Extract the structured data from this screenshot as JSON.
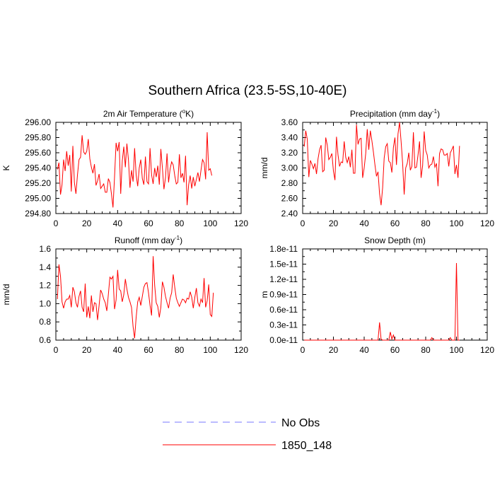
{
  "title": "Southern Africa (23.5-5S,10-40E)",
  "legend": [
    {
      "label": "No Obs",
      "color": "#7777ff",
      "style": "dashed"
    },
    {
      "label": "1850_148",
      "color": "#ff0000",
      "style": "solid"
    }
  ],
  "chart_data": [
    {
      "type": "line",
      "title": "2m Air Temperature (°K)",
      "title_main": "2m Air Temperature (",
      "title_sup": "o",
      "title_end": "K)",
      "ylabel": "K",
      "xlim": [
        0,
        120
      ],
      "ylim": [
        294.8,
        296.0
      ],
      "xticks": [
        0,
        20,
        40,
        60,
        80,
        100,
        120
      ],
      "yticks": [
        "294.80",
        "295.00",
        "295.20",
        "295.40",
        "295.60",
        "295.80",
        "296.00"
      ],
      "color": "#ff0000",
      "series": [
        {
          "name": "1850_148",
          "x_start": 1,
          "x_step": 1,
          "values": [
            295.38,
            295.47,
            295.05,
            295.18,
            295.51,
            295.36,
            295.62,
            295.43,
            295.57,
            295.09,
            295.69,
            295.21,
            295.06,
            295.31,
            295.51,
            295.54,
            295.83,
            295.61,
            295.58,
            295.62,
            295.78,
            295.52,
            295.41,
            295.33,
            295.45,
            295.17,
            295.23,
            295.32,
            295.13,
            295.16,
            295.19,
            295.08,
            295.08,
            295.26,
            295.21,
            295.06,
            294.88,
            295.28,
            295.73,
            295.62,
            295.74,
            295.06,
            295.49,
            295.68,
            295.41,
            295.72,
            295.51,
            295.14,
            295.37,
            295.22,
            295.66,
            295.31,
            295.16,
            295.4,
            295.51,
            295.26,
            295.18,
            295.55,
            295.22,
            295.19,
            295.66,
            295.31,
            295.19,
            295.4,
            295.28,
            295.43,
            295.18,
            295.65,
            295.4,
            295.12,
            295.27,
            295.59,
            295.21,
            295.39,
            295.48,
            295.44,
            295.3,
            295.19,
            295.21,
            295.58,
            295.27,
            295.33,
            295.21,
            295.56,
            294.91,
            295.18,
            295.3,
            295.13,
            295.28,
            295.16,
            295.25,
            295.34,
            295.22,
            295.37,
            295.51,
            295.47,
            295.25,
            295.87,
            295.37,
            295.39,
            295.3
          ]
        }
      ]
    },
    {
      "type": "line",
      "title": "Precipitation (mm day-1)",
      "title_main": "Precipitation (mm day",
      "title_sup": "-1",
      "title_end": ")",
      "ylabel": "mm/d",
      "xlim": [
        0,
        120
      ],
      "ylim": [
        2.4,
        3.6
      ],
      "xticks": [
        0,
        20,
        40,
        60,
        80,
        100,
        120
      ],
      "yticks": [
        "2.40",
        "2.60",
        "2.80",
        "3.00",
        "3.20",
        "3.40",
        "3.60"
      ],
      "color": "#ff0000",
      "series": [
        {
          "name": "1850_148",
          "x_start": 1,
          "x_step": 1,
          "values": [
            3.28,
            3.49,
            3.38,
            2.88,
            3.1,
            3.05,
            2.99,
            3.06,
            2.92,
            3.12,
            3.24,
            3.3,
            2.95,
            2.97,
            3.4,
            3.3,
            3.11,
            3.14,
            3.19,
            2.96,
            2.84,
            3.41,
            3.17,
            3.02,
            3.08,
            3.07,
            3.35,
            3.14,
            3.07,
            3.15,
            3.01,
            3.24,
            2.93,
            2.93,
            3.57,
            3.31,
            3.38,
            3.39,
            2.87,
            3.0,
            3.19,
            3.51,
            3.24,
            3.49,
            3.36,
            3.21,
            3.04,
            2.89,
            2.95,
            2.66,
            2.51,
            2.74,
            3.13,
            3.28,
            3.32,
            3.09,
            3.07,
            2.94,
            3.27,
            3.4,
            3.04,
            3.45,
            3.6,
            3.35,
            3.06,
            2.65,
            3.0,
            3.06,
            3.2,
            2.97,
            3.02,
            3.47,
            3.0,
            3.01,
            3.17,
            3.35,
            2.87,
            3.03,
            3.48,
            3.23,
            3.17,
            3.0,
            3.04,
            3.05,
            3.15,
            3.01,
            3.06,
            2.76,
            3.19,
            3.25,
            3.24,
            3.17,
            3.17,
            3.19,
            3.02,
            3.2,
            3.24,
            3.29,
            2.92,
            3.04,
            2.87,
            3.29
          ]
        }
      ]
    },
    {
      "type": "line",
      "title": "Runoff (mm day-1)",
      "title_main": "Runoff (mm day",
      "title_sup": "-1",
      "title_end": ")",
      "ylabel": "mm/d",
      "xlim": [
        0,
        120
      ],
      "ylim": [
        0.6,
        1.6
      ],
      "xticks": [
        0,
        20,
        40,
        60,
        80,
        100,
        120
      ],
      "yticks": [
        "0.6",
        "0.8",
        "1.0",
        "1.2",
        "1.4",
        "1.6"
      ],
      "color": "#ff0000",
      "series": [
        {
          "name": "1850_148",
          "x_start": 1,
          "x_step": 1,
          "values": [
            1.05,
            1.43,
            1.3,
            1.02,
            0.95,
            1.02,
            1.05,
            1.05,
            1.09,
            0.96,
            1.18,
            1.13,
            1.01,
            0.96,
            1.08,
            1.14,
            0.96,
            0.91,
            1.22,
            0.85,
            0.97,
            0.84,
            1.09,
            0.91,
            1.01,
            1.0,
            0.82,
            0.98,
            1.15,
            1.11,
            1.05,
            1.01,
            0.92,
            1.1,
            1.29,
            1.27,
            1.3,
            0.94,
            1.04,
            1.37,
            1.16,
            1.14,
            1.02,
            1.1,
            1.27,
            1.16,
            1.07,
            1.02,
            0.96,
            0.75,
            0.62,
            0.85,
            1.02,
            1.07,
            0.98,
            1.08,
            1.18,
            1.22,
            1.23,
            1.12,
            0.98,
            0.87,
            1.52,
            1.2,
            1.01,
            0.97,
            0.85,
            0.96,
            1.24,
            1.18,
            1.08,
            1.01,
            0.95,
            1.06,
            1.12,
            1.32,
            1.18,
            1.06,
            1.01,
            0.97,
            1.01,
            1.05,
            1.04,
            1.01,
            1.06,
            1.05,
            1.13,
            1.07,
            0.95,
            1.07,
            1.17,
            1.01,
            0.97,
            1.05,
            1.01,
            1.28,
            0.96,
            1.03,
            1.21,
            0.88,
            0.86,
            1.12
          ]
        }
      ]
    },
    {
      "type": "line",
      "title": "Snow Depth (m)",
      "title_main": "Snow Depth (m)",
      "title_sup": "",
      "title_end": "",
      "ylabel": "m",
      "xlim": [
        0,
        120
      ],
      "ylim": [
        0,
        1.8e-11
      ],
      "xticks": [
        0,
        20,
        40,
        60,
        80,
        100,
        120
      ],
      "yticks": [
        "0.0e-11",
        "0.3e-11",
        "0.6e-11",
        "0.9e-11",
        "1.2e-11",
        "1.5e-11",
        "1.8e-11"
      ],
      "color": "#ff0000",
      "series": [
        {
          "name": "1850_148",
          "x_start": 1,
          "x_step": 1,
          "values": [
            0,
            0,
            0,
            0,
            0,
            0,
            0,
            0,
            0,
            0,
            0,
            0,
            0,
            0,
            0,
            0,
            0,
            0,
            0,
            0,
            0,
            0,
            0,
            0,
            0,
            0,
            0,
            0,
            0,
            0,
            0,
            0,
            0,
            0,
            0,
            0,
            0,
            0,
            0,
            0,
            0,
            0,
            0,
            0,
            0,
            0,
            0,
            0,
            0,
            3.5e-12,
            2e-13,
            0,
            0,
            0,
            0,
            0,
            1.6e-12,
            2e-13,
            1e-12,
            0,
            0,
            0,
            0,
            0,
            0,
            0,
            0,
            0,
            0,
            0,
            0,
            0,
            0,
            0,
            0,
            0,
            0,
            0,
            0,
            0,
            0,
            0,
            0,
            5e-13,
            0,
            0,
            0,
            0,
            0,
            0,
            0,
            0,
            0,
            0,
            0,
            5e-13,
            0,
            0,
            0,
            1.52e-11,
            0,
            0
          ]
        }
      ]
    }
  ]
}
